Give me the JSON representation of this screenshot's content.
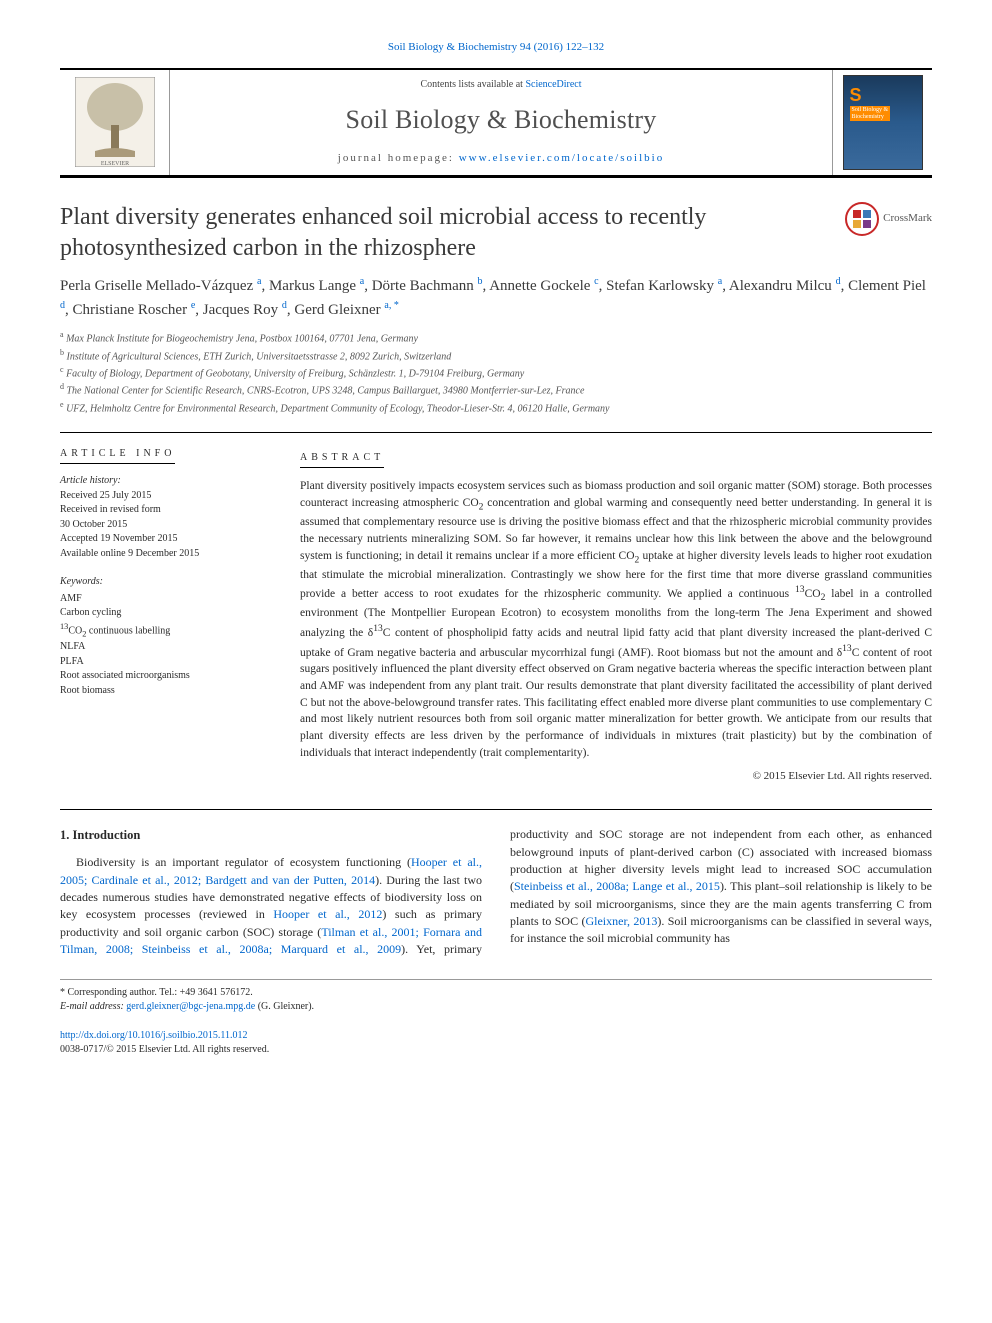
{
  "journal_ref": "Soil Biology & Biochemistry 94 (2016) 122–132",
  "header": {
    "contents_prefix": "Contents lists available at ",
    "contents_link": "ScienceDirect",
    "journal_title": "Soil Biology & Biochemistry",
    "homepage_prefix": "journal homepage: ",
    "homepage_link": "www.elsevier.com/locate/soilbio",
    "cover_label_line1": "Soil Biology &",
    "cover_label_line2": "Biochemistry"
  },
  "crossmark_label": "CrossMark",
  "article_title": "Plant diversity generates enhanced soil microbial access to recently photosynthesized carbon in the rhizosphere",
  "authors_html": "Perla Griselle Mellado-Vázquez <sup>a</sup>, Markus Lange <sup>a</sup>, Dörte Bachmann <sup>b</sup>, Annette Gockele <sup>c</sup>, Stefan Karlowsky <sup>a</sup>, Alexandru Milcu <sup>d</sup>, Clement Piel <sup>d</sup>, Christiane Roscher <sup>e</sup>, Jacques Roy <sup>d</sup>, Gerd Gleixner <sup>a, *</sup>",
  "affiliations": {
    "a": "Max Planck Institute for Biogeochemistry Jena, Postbox 100164, 07701 Jena, Germany",
    "b": "Institute of Agricultural Sciences, ETH Zurich, Universitaetsstrasse 2, 8092 Zurich, Switzerland",
    "c": "Faculty of Biology, Department of Geobotany, University of Freiburg, Schänzlestr. 1, D-79104 Freiburg, Germany",
    "d": "The National Center for Scientific Research, CNRS-Ecotron, UPS 3248, Campus Baillarguet, 34980 Montferrier-sur-Lez, France",
    "e": "UFZ, Helmholtz Centre for Environmental Research, Department Community of Ecology, Theodor-Lieser-Str. 4, 06120 Halle, Germany"
  },
  "article_info_head": "ARTICLE INFO",
  "abstract_head": "ABSTRACT",
  "history": {
    "label": "Article history:",
    "received": "Received 25 July 2015",
    "revised1": "Received in revised form",
    "revised2": "30 October 2015",
    "accepted": "Accepted 19 November 2015",
    "online": "Available online 9 December 2015"
  },
  "keywords": {
    "label": "Keywords:",
    "items": [
      "AMF",
      "Carbon cycling",
      "13CO2 continuous labelling",
      "NLFA",
      "PLFA",
      "Root associated microorganisms",
      "Root biomass"
    ]
  },
  "abstract": "Plant diversity positively impacts ecosystem services such as biomass production and soil organic matter (SOM) storage. Both processes counteract increasing atmospheric CO2 concentration and global warming and consequently need better understanding. In general it is assumed that complementary resource use is driving the positive biomass effect and that the rhizospheric microbial community provides the necessary nutrients mineralizing SOM. So far however, it remains unclear how this link between the above and the belowground system is functioning; in detail it remains unclear if a more efficient CO2 uptake at higher diversity levels leads to higher root exudation that stimulate the microbial mineralization. Contrastingly we show here for the first time that more diverse grassland communities provide a better access to root exudates for the rhizospheric community. We applied a continuous 13CO2 label in a controlled environment (The Montpellier European Ecotron) to ecosystem monoliths from the long-term The Jena Experiment and showed analyzing the δ13C content of phospholipid fatty acids and neutral lipid fatty acid that plant diversity increased the plant-derived C uptake of Gram negative bacteria and arbuscular mycorrhizal fungi (AMF). Root biomass but not the amount and δ13C content of root sugars positively influenced the plant diversity effect observed on Gram negative bacteria whereas the specific interaction between plant and AMF was independent from any plant trait. Our results demonstrate that plant diversity facilitated the accessibility of plant derived C but not the above-belowground transfer rates. This facilitating effect enabled more diverse plant communities to use complementary C and most likely nutrient resources both from soil organic matter mineralization for better growth. We anticipate from our results that plant diversity effects are less driven by the performance of individuals in mixtures (trait plasticity) but by the combination of individuals that interact independently (trait complementarity).",
  "copyright": "© 2015 Elsevier Ltd. All rights reserved.",
  "intro": {
    "head": "1. Introduction",
    "para_html": "Biodiversity is an important regulator of ecosystem functioning (<a>Hooper et al., 2005; Cardinale et al., 2012; Bardgett and van der Putten, 2014</a>). During the last two decades numerous studies have demonstrated negative effects of biodiversity loss on key ecosystem processes (reviewed in <a>Hooper et al., 2012</a>) such as primary productivity and soil organic carbon (SOC) storage (<a>Tilman et al., 2001; Fornara and Tilman, 2008; Steinbeiss et al., 2008a; Marquard et al., 2009</a>). Yet, primary productivity and SOC storage are not independent from each other, as enhanced belowground inputs of plant-derived carbon (C) associated with increased biomass production at higher diversity levels might lead to increased SOC accumulation (<a>Steinbeiss et al., 2008a; Lange et al., 2015</a>). This plant–soil relationship is likely to be mediated by soil microorganisms, since they are the main agents transferring C from plants to SOC (<a>Gleixner, 2013</a>). Soil microorganisms can be classified in several ways, for instance the soil microbial community has"
  },
  "footer": {
    "corr_label": "* Corresponding author. Tel.: +49 3641 576172.",
    "email_label": "E-mail address: ",
    "email": "gerd.gleixner@bgc-jena.mpg.de",
    "email_suffix": " (G. Gleixner).",
    "doi": "http://dx.doi.org/10.1016/j.soilbio.2015.11.012",
    "issn": "0038-0717/© 2015 Elsevier Ltd. All rights reserved."
  },
  "colors": {
    "link": "#0066cc",
    "text": "#2a2a2a",
    "muted": "#555555",
    "crossmark_ring": "#c82828",
    "cover_accent": "#ff8c00"
  }
}
